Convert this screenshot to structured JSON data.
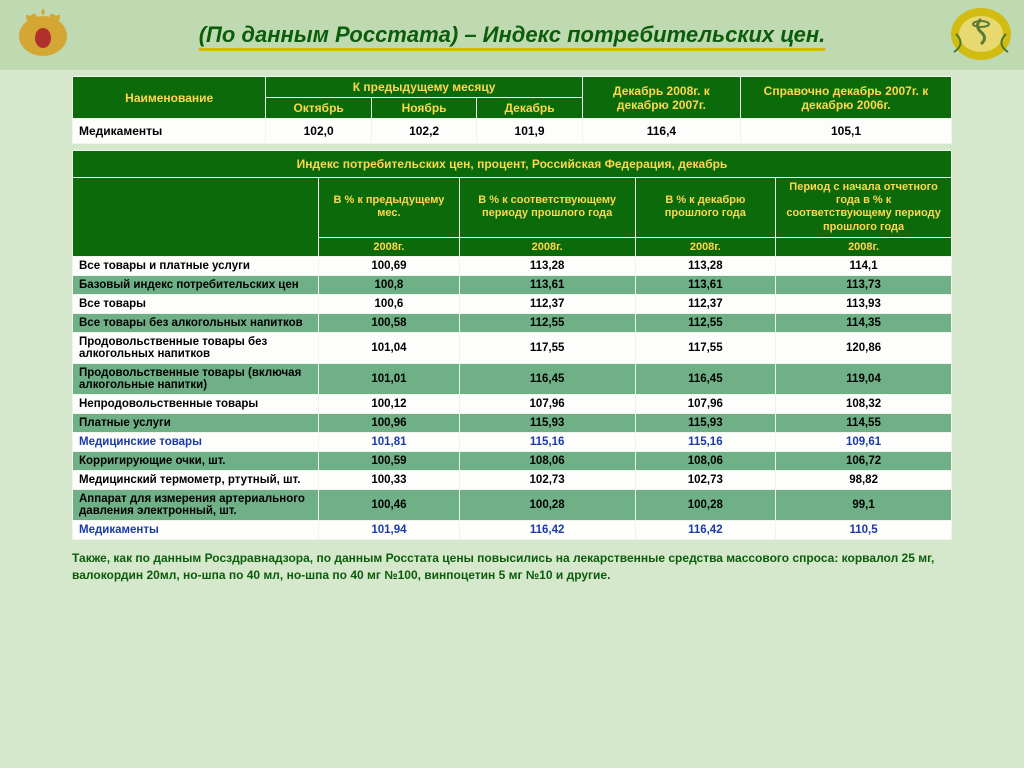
{
  "title": "(По данным Росстата) – Индекс потребительских цен.",
  "colors": {
    "page_bg": "#d5e8cc",
    "header_bg": "#bfdab1",
    "table_header_bg": "#0b6b0b",
    "table_header_fg": "#ffd64d",
    "row_even_bg": "#6fb087",
    "row_odd_bg": "#fdfdfc",
    "blue_text": "#1a3aa5",
    "title_color": "#0b5c0b",
    "underline_color": "#d4b800"
  },
  "table1": {
    "col_widths_pct": [
      22,
      12,
      12,
      12,
      18,
      24
    ],
    "headers": {
      "name": "Наименование",
      "prev_month": "К предыдущему месяцу",
      "months": [
        "Октябрь",
        "Ноябрь",
        "Декабрь"
      ],
      "dec08_07": "Декабрь 2008г. к декабрю 2007г.",
      "ref07_06": "Справочно декабрь 2007г. к декабрю 2006г."
    },
    "row": {
      "label": "Медикаменты",
      "values": [
        "102,0",
        "102,2",
        "101,9",
        "116,4",
        "105,1"
      ]
    }
  },
  "table2": {
    "col_widths_pct": [
      28,
      16,
      20,
      16,
      20
    ],
    "banner": "Индекс потребительских цен, процент, Российская Федерация, декабрь",
    "subheaders": [
      "В % к предыдущему мес.",
      "В % к соответствующему периоду прошлого года",
      "В % к декабрю прошлого года",
      "Период с начала отчетного года в % к соответствующему периоду прошлого года"
    ],
    "year": "2008г.",
    "rows": [
      {
        "cls": "odd",
        "label": "Все товары и платные услуги",
        "v": [
          "100,69",
          "113,28",
          "113,28",
          "114,1"
        ]
      },
      {
        "cls": "even",
        "label": "Базовый индекс потребительских цен",
        "v": [
          "100,8",
          "113,61",
          "113,61",
          "113,73"
        ]
      },
      {
        "cls": "odd",
        "label": "Все товары",
        "v": [
          "100,6",
          "112,37",
          "112,37",
          "113,93"
        ]
      },
      {
        "cls": "even",
        "label": "Все товары без алкогольных напитков",
        "v": [
          "100,58",
          "112,55",
          "112,55",
          "114,35"
        ]
      },
      {
        "cls": "odd",
        "label": "Продовольственные товары без алкогольных напитков",
        "v": [
          "101,04",
          "117,55",
          "117,55",
          "120,86"
        ]
      },
      {
        "cls": "even",
        "label": "Продовольственные товары (включая алкогольные напитки)",
        "v": [
          "101,01",
          "116,45",
          "116,45",
          "119,04"
        ]
      },
      {
        "cls": "odd",
        "label": "Непродовольственные товары",
        "v": [
          "100,12",
          "107,96",
          "107,96",
          "108,32"
        ]
      },
      {
        "cls": "even",
        "label": "Платные услуги",
        "v": [
          "100,96",
          "115,93",
          "115,93",
          "114,55"
        ]
      },
      {
        "cls": "blue-odd",
        "label": "Медицинские товары",
        "v": [
          "101,81",
          "115,16",
          "115,16",
          "109,61"
        ]
      },
      {
        "cls": "even",
        "label": "Корригирующие очки, шт.",
        "v": [
          "100,59",
          "108,06",
          "108,06",
          "106,72"
        ]
      },
      {
        "cls": "odd",
        "label": "Медицинский термометр, ртутный, шт.",
        "v": [
          "100,33",
          "102,73",
          "102,73",
          "98,82"
        ]
      },
      {
        "cls": "even",
        "label": "Аппарат для измерения артериального давления электронный, шт.",
        "v": [
          "100,46",
          "100,28",
          "100,28",
          "99,1"
        ]
      },
      {
        "cls": "blue-odd",
        "label": "Медикаменты",
        "v": [
          "101,94",
          "116,42",
          "116,42",
          "110,5"
        ]
      }
    ]
  },
  "footnote": "Также, как по данным Росздравнадзора, по данным Росстата цены повысились на лекарственные средства массового спроса: корвалол 25 мг, валокордин 20мл, но-шпа по 40 мл, но-шпа по 40 мг №100, винпоцетин 5 мг №10 и другие."
}
